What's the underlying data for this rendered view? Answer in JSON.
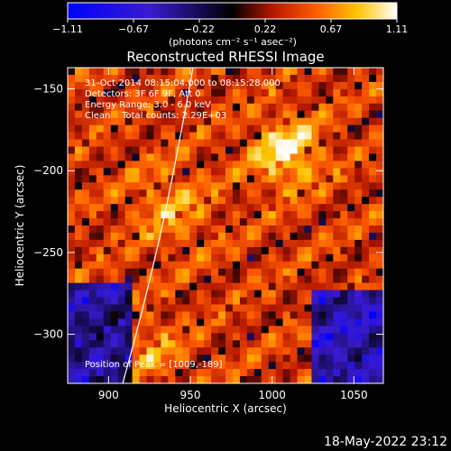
{
  "colorbar": {
    "ticks": [
      "-1.11",
      "-0.67",
      "-0.22",
      "0.22",
      "0.67",
      "1.11"
    ],
    "units": "(photons cm⁻² s⁻¹ asec⁻²)",
    "range": [
      -1.11,
      1.11
    ]
  },
  "chart_data": {
    "type": "heatmap",
    "title": "Reconstructed RHESSI Image",
    "xlabel": "Heliocentric X (arcsec)",
    "ylabel": "Heliocentric Y (arcsec)",
    "xlim": [
      875,
      1068
    ],
    "ylim": [
      -330,
      -137
    ],
    "x_ticks": [
      "900",
      "950",
      "1000",
      "1050"
    ],
    "y_ticks": [
      "-150",
      "-200",
      "-250",
      "-300"
    ],
    "annotations": [
      "31-Oct-2014 08:15:04.000 to 08:15:28.000",
      "Detectors: 3F 6F 9F, Att 0",
      "Energy Range: 3.0 - 6.0 keV",
      "Clean    Total counts: 2.29E+03"
    ],
    "peak_label": "Position of Peak = [1009,-189]",
    "peak": [
      1009,
      -189
    ],
    "colormap": "blue-black-red-yellow-white"
  },
  "footer": {
    "timestamp": "18-May-2022 23:12"
  }
}
